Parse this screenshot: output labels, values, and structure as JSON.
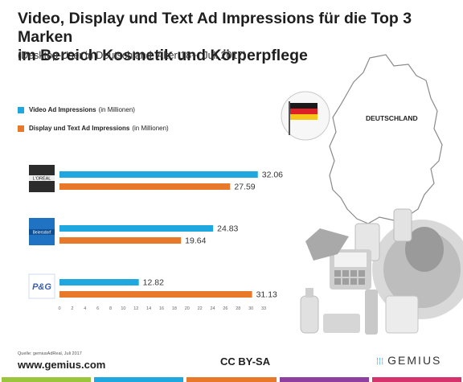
{
  "chart_data": {
    "type": "bar",
    "orientation": "horizontal",
    "title_line1": "Video, Display und Text Ad Impressions für die Top 3 Marken",
    "title_line2": "im Bereich Kosmetik und Körperpflege",
    "subtitle": "(Desktop-User in Deutschland, Alter 18+, Juli 2017)",
    "categories": [
      "L'ORÉAL",
      "Beiersdorf",
      "P&G"
    ],
    "series": [
      {
        "name": "Video Ad Impressions",
        "unit_note": "(in Millionen)",
        "color": "#1fa8e0",
        "values": [
          32.06,
          24.83,
          12.82
        ]
      },
      {
        "name": "Display und Text Ad Impressions",
        "unit_note": "(in Millionen)",
        "color": "#e8782a",
        "values": [
          27.59,
          19.64,
          31.13
        ]
      }
    ],
    "xlim": [
      0,
      33
    ],
    "xticks": [
      "0",
      "2",
      "4",
      "6",
      "8",
      "10",
      "12",
      "14",
      "16",
      "18",
      "20",
      "22",
      "24",
      "26",
      "28",
      "30",
      "33"
    ],
    "legend_position": "top-left",
    "grid": false
  },
  "map": {
    "label": "DEUTSCHLAND"
  },
  "footer": {
    "source": "Quelle: gemiusAdReal, Juli 2017",
    "url": "www.gemius.com",
    "license": "CC BY-SA",
    "brand": "GEMIUS"
  },
  "stripe_colors": [
    "#9bc53d",
    "#1fa8e0",
    "#e8782a",
    "#8e3fa0",
    "#d6336c"
  ]
}
